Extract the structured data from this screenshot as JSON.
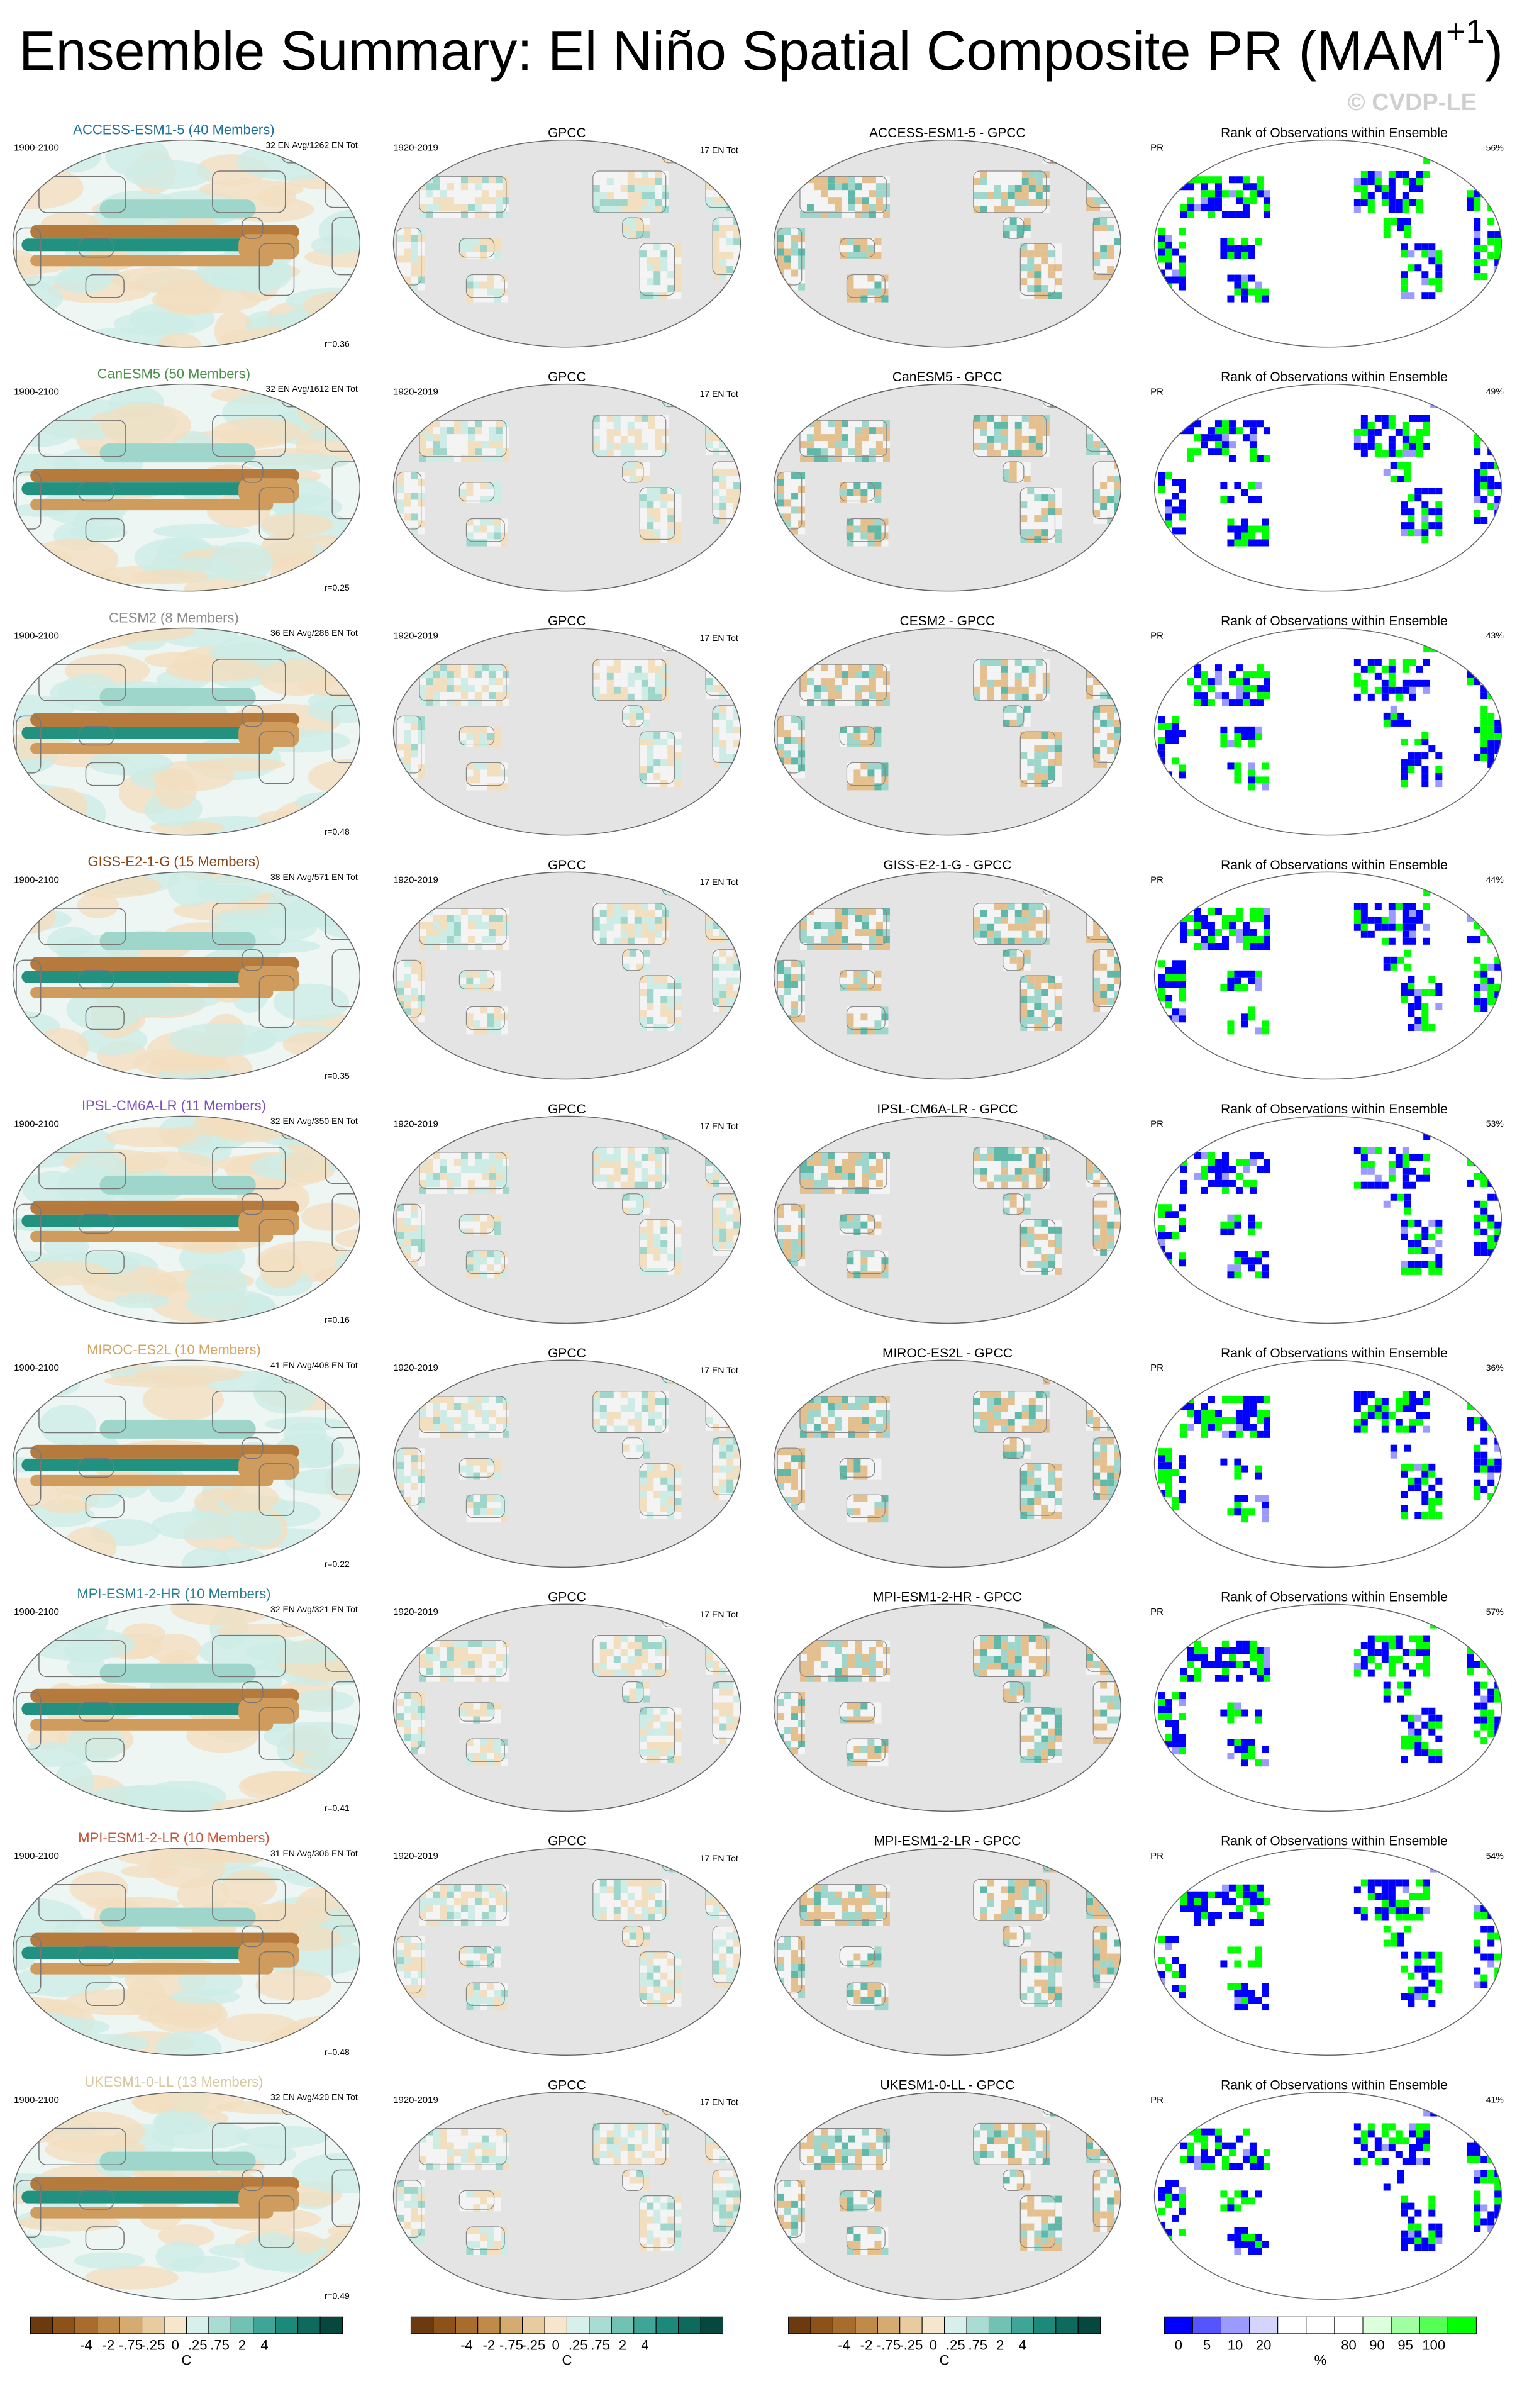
{
  "header": {
    "title": "Ensemble Summary: El Niño Spatial Composite PR (MAM",
    "title_sup": "+1",
    "title_end": ")",
    "watermark": "© CVDP-LE"
  },
  "rows": [
    {
      "model": "ACCESS-ESM1-5 (40 Members)",
      "color": "#1f6f9a",
      "period": "1900-2100",
      "stats": "32 EN Avg/1262 EN Tot",
      "r": "r=0.36",
      "obs": "GPCC",
      "obs_period": "1920-2019",
      "obs_stats": "17 EN Tot",
      "diff": "ACCESS-ESM1-5 - GPCC",
      "rank_title": "Rank of Observations within Ensemble",
      "var": "PR",
      "rank_pct": "56%"
    },
    {
      "model": "CanESM5 (50 Members)",
      "color": "#4a8f4a",
      "period": "1900-2100",
      "stats": "32 EN Avg/1612 EN Tot",
      "r": "r=0.25",
      "obs": "GPCC",
      "obs_period": "1920-2019",
      "obs_stats": "17 EN Tot",
      "diff": "CanESM5 - GPCC",
      "rank_title": "Rank of Observations within Ensemble",
      "var": "PR",
      "rank_pct": "49%"
    },
    {
      "model": "CESM2 (8 Members)",
      "color": "#8a8a8a",
      "period": "1900-2100",
      "stats": "36 EN Avg/286 EN Tot",
      "r": "r=0.48",
      "obs": "GPCC",
      "obs_period": "1920-2019",
      "obs_stats": "17 EN Tot",
      "diff": "CESM2 - GPCC",
      "rank_title": "Rank of Observations within Ensemble",
      "var": "PR",
      "rank_pct": "43%"
    },
    {
      "model": "GISS-E2-1-G (15 Members)",
      "color": "#8b4513",
      "period": "1900-2100",
      "stats": "38 EN Avg/571 EN Tot",
      "r": "r=0.35",
      "obs": "GPCC",
      "obs_period": "1920-2019",
      "obs_stats": "17 EN Tot",
      "diff": "GISS-E2-1-G - GPCC",
      "rank_title": "Rank of Observations within Ensemble",
      "var": "PR",
      "rank_pct": "44%"
    },
    {
      "model": "IPSL-CM6A-LR (11 Members)",
      "color": "#7b4fc0",
      "period": "1900-2100",
      "stats": "32 EN Avg/350 EN Tot",
      "r": "r=0.16",
      "obs": "GPCC",
      "obs_period": "1920-2019",
      "obs_stats": "17 EN Tot",
      "diff": "IPSL-CM6A-LR - GPCC",
      "rank_title": "Rank of Observations within Ensemble",
      "var": "PR",
      "rank_pct": "53%"
    },
    {
      "model": "MIROC-ES2L (10 Members)",
      "color": "#d6a464",
      "period": "1900-2100",
      "stats": "41 EN Avg/408 EN Tot",
      "r": "r=0.22",
      "obs": "GPCC",
      "obs_period": "1920-2019",
      "obs_stats": "17 EN Tot",
      "diff": "MIROC-ES2L - GPCC",
      "rank_title": "Rank of Observations within Ensemble",
      "var": "PR",
      "rank_pct": "36%"
    },
    {
      "model": "MPI-ESM1-2-HR (10 Members)",
      "color": "#2a7f8f",
      "period": "1900-2100",
      "stats": "32 EN Avg/321 EN Tot",
      "r": "r=0.41",
      "obs": "GPCC",
      "obs_period": "1920-2019",
      "obs_stats": "17 EN Tot",
      "diff": "MPI-ESM1-2-HR - GPCC",
      "rank_title": "Rank of Observations within Ensemble",
      "var": "PR",
      "rank_pct": "57%"
    },
    {
      "model": "MPI-ESM1-2-LR (10 Members)",
      "color": "#c8553a",
      "period": "1900-2100",
      "stats": "31 EN Avg/306 EN Tot",
      "r": "r=0.48",
      "obs": "GPCC",
      "obs_period": "1920-2019",
      "obs_stats": "17 EN Tot",
      "diff": "MPI-ESM1-2-LR - GPCC",
      "rank_title": "Rank of Observations within Ensemble",
      "var": "PR",
      "rank_pct": "54%"
    },
    {
      "model": "UKESM1-0-LL (13 Members)",
      "color": "#d8c8a0",
      "period": "1900-2100",
      "stats": "32 EN Avg/420 EN Tot",
      "r": "r=0.49",
      "obs": "GPCC",
      "obs_period": "1920-2019",
      "obs_stats": "17 EN Tot",
      "diff": "UKESM1-0-LL - GPCC",
      "rank_title": "Rank of Observations within Ensemble",
      "var": "PR",
      "rank_pct": "41%"
    }
  ],
  "colorbars": [
    {
      "labels": [
        "-4",
        "-2",
        "-.75",
        "-.25",
        "0",
        ".25",
        ".75",
        "2",
        "4"
      ],
      "unit": "C",
      "colors": [
        "#6b3a0e",
        "#8c5218",
        "#a86d2c",
        "#c08a48",
        "#d6ab72",
        "#e8cb9e",
        "#f5e6cc",
        "#d8f0ec",
        "#a9dcd2",
        "#72c2b4",
        "#3fa596",
        "#1b8a7a",
        "#0d6a5c",
        "#06483e"
      ]
    },
    {
      "labels": [
        "-4",
        "-2",
        "-.75",
        "-.25",
        "0",
        ".25",
        ".75",
        "2",
        "4"
      ],
      "unit": "C",
      "colors": [
        "#6b3a0e",
        "#8c5218",
        "#a86d2c",
        "#c08a48",
        "#d6ab72",
        "#e8cb9e",
        "#f5e6cc",
        "#d8f0ec",
        "#a9dcd2",
        "#72c2b4",
        "#3fa596",
        "#1b8a7a",
        "#0d6a5c",
        "#06483e"
      ]
    },
    {
      "labels": [
        "-4",
        "-2",
        "-.75",
        "-.25",
        "0",
        ".25",
        ".75",
        "2",
        "4"
      ],
      "unit": "C",
      "colors": [
        "#6b3a0e",
        "#8c5218",
        "#a86d2c",
        "#c08a48",
        "#d6ab72",
        "#e8cb9e",
        "#f5e6cc",
        "#d8f0ec",
        "#a9dcd2",
        "#72c2b4",
        "#3fa596",
        "#1b8a7a",
        "#0d6a5c",
        "#06483e"
      ]
    },
    {
      "labels": [
        "0",
        "5",
        "10",
        "20",
        "80",
        "90",
        "95",
        "100"
      ],
      "unit": "%",
      "colors": [
        "#0000ff",
        "#5555ff",
        "#9a9aff",
        "#d4d4ff",
        "#ffffff",
        "#ffffff",
        "#ffffff",
        "#dcffdc",
        "#a0ffa0",
        "#55ff55",
        "#00ff00"
      ]
    }
  ]
}
